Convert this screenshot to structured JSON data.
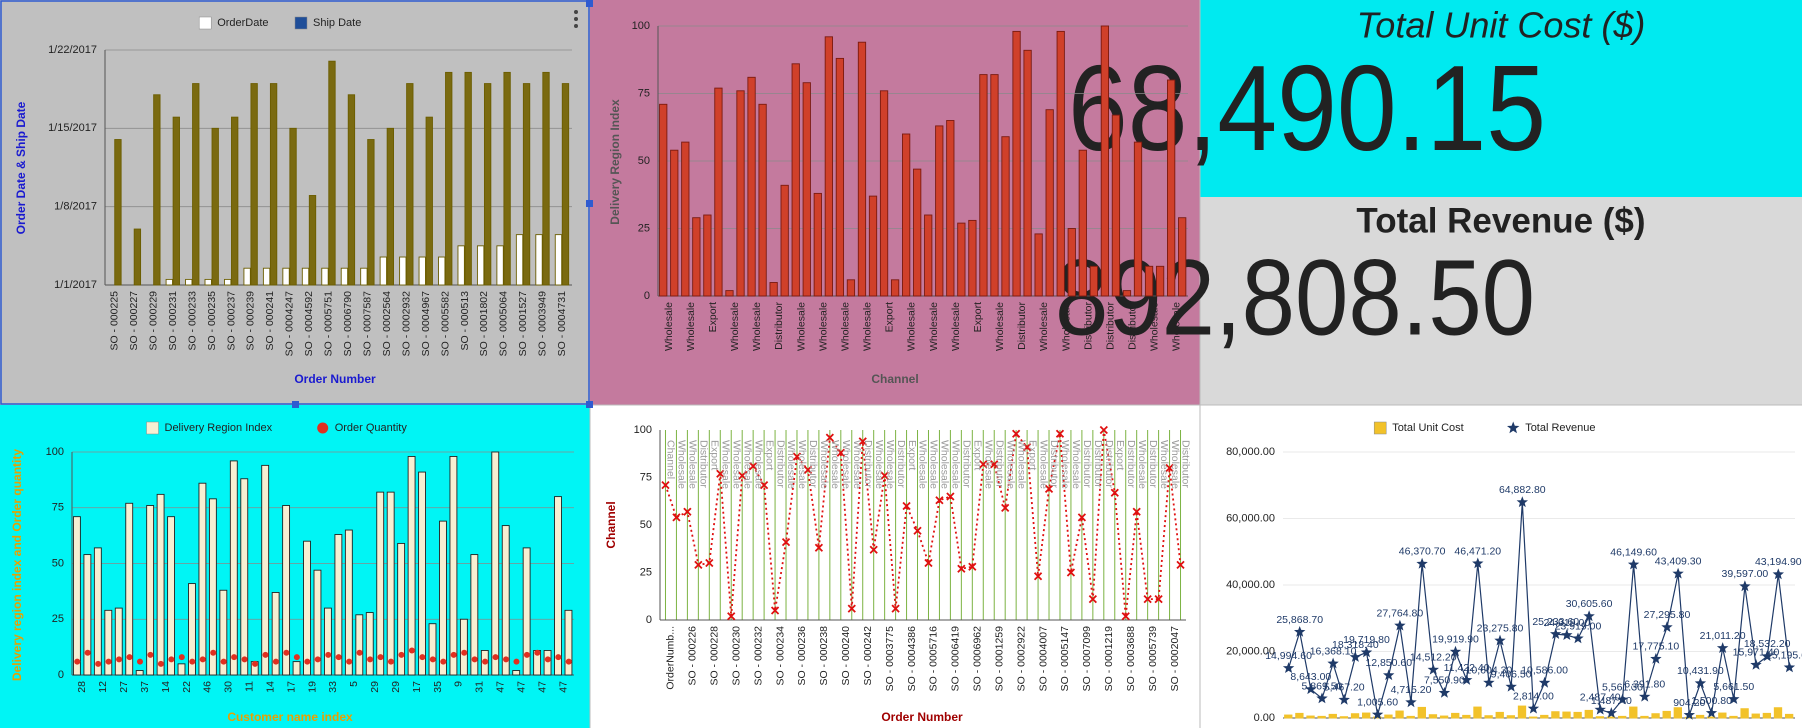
{
  "chart_data": [
    {
      "type": "bar",
      "legend": true,
      "grid": true,
      "stroke": "#6b5d00",
      "x_label": "Order Number",
      "y_label": "Order Date & Ship Date",
      "axis_label_color": "#1a1ad0",
      "categories": [
        "SO - 000225",
        "SO - 000227",
        "SO - 000229",
        "SO - 000231",
        "SO - 000233",
        "SO - 000235",
        "SO - 000237",
        "SO - 000239",
        "SO - 000241",
        "SO - 0004247",
        "SO - 0004592",
        "SO - 0005751",
        "SO - 0006790",
        "SO - 0007587",
        "SO - 0002564",
        "SO - 0002932",
        "SO - 0004967",
        "SO - 0005582",
        "SO - 000513",
        "SO - 0001802",
        "SO - 0005064",
        "SO - 0001527",
        "SO - 0003949",
        "SO - 0004731"
      ],
      "series": [
        {
          "name": "OrderDate",
          "color": "#ffffff",
          "values": [
            1,
            1,
            1,
            1.5,
            1.5,
            1.5,
            1.5,
            2.5,
            2.5,
            2.5,
            2.5,
            2.5,
            2.5,
            2.5,
            3.5,
            3.5,
            3.5,
            3.5,
            4.5,
            4.5,
            4.5,
            5.5,
            5.5,
            5.5
          ]
        },
        {
          "name": "Ship Date",
          "color": "#1f4e99",
          "bar_fill": "#7a6a10",
          "values": [
            14,
            6,
            18,
            16,
            19,
            15,
            16,
            19,
            19,
            15,
            9,
            21,
            18,
            14,
            15,
            19,
            16,
            20,
            20,
            19,
            20,
            19,
            20,
            19
          ]
        }
      ],
      "ylim": [
        1,
        22
      ],
      "yticks": [
        {
          "value": 1,
          "label": "1/1/2017"
        },
        {
          "value": 8,
          "label": "1/8/2017"
        },
        {
          "value": 15,
          "label": "1/15/2017"
        },
        {
          "value": 22,
          "label": "1/22/2017"
        }
      ]
    },
    {
      "type": "bar",
      "grid": true,
      "color": "#d0402a",
      "stroke": "#7a1a10",
      "x_label": "Channel",
      "y_label": "Delivery Region Index",
      "axis_label_color": "#555555",
      "categories": [
        "Wholesale",
        null,
        "Wholesale",
        null,
        "Export",
        null,
        "Wholesale",
        null,
        "Wholesale",
        null,
        "Distributor",
        null,
        "Wholesale",
        null,
        "Wholesale",
        null,
        "Wholesale",
        null,
        "Wholesale",
        null,
        "Export",
        null,
        "Wholesale",
        null,
        "Wholesale",
        null,
        "Wholesale",
        null,
        "Export",
        null,
        "Wholesale",
        null,
        "Distributor",
        null,
        "Wholesale",
        null,
        "Wholesale",
        null,
        "Distributor",
        null,
        "Distributor",
        null,
        "Distributor",
        null,
        "Wholesale",
        null,
        "Wholesale",
        null
      ],
      "values": [
        71,
        54,
        57,
        29,
        30,
        77,
        2,
        76,
        81,
        71,
        5,
        41,
        86,
        79,
        38,
        96,
        88,
        6,
        94,
        37,
        76,
        6,
        60,
        47,
        30,
        63,
        65,
        27,
        28,
        82,
        82,
        59,
        98,
        91,
        23,
        69,
        98,
        25,
        54,
        11,
        100,
        67,
        2,
        57,
        11,
        11,
        80,
        29
      ],
      "ylim": [
        0,
        100
      ],
      "yticks": [
        0,
        25,
        50,
        75,
        100
      ]
    },
    {
      "type": "combo",
      "legend": true,
      "grid": true,
      "x_label": "Customer name index",
      "y_label": "Delivery region index and Order quantity",
      "axis_label_color": "#e8a000",
      "categories": [
        "28",
        null,
        "12",
        null,
        "27",
        null,
        "37",
        null,
        "14",
        null,
        "22",
        null,
        "46",
        null,
        "30",
        null,
        "11",
        null,
        "14",
        null,
        "17",
        null,
        "19",
        null,
        "33",
        null,
        "5",
        null,
        "29",
        null,
        "29",
        null,
        "17",
        null,
        "35",
        null,
        "9",
        null,
        "31",
        null,
        "47",
        null,
        "47",
        null,
        "47",
        null,
        "47",
        null
      ],
      "series": [
        {
          "name": "Delivery Region Index",
          "type": "bar",
          "color": "#f7efd2",
          "stroke": "#222222",
          "values": [
            71,
            54,
            57,
            29,
            30,
            77,
            2,
            76,
            81,
            71,
            5,
            41,
            86,
            79,
            38,
            96,
            88,
            6,
            94,
            37,
            76,
            6,
            60,
            47,
            30,
            63,
            65,
            27,
            28,
            82,
            82,
            59,
            98,
            91,
            23,
            69,
            98,
            25,
            54,
            11,
            100,
            67,
            2,
            57,
            11,
            11,
            80,
            29
          ]
        },
        {
          "name": "Order Quantity",
          "type": "scatter",
          "color": "#e03020",
          "values": [
            6,
            10,
            5,
            6,
            7,
            8,
            6,
            9,
            5,
            7,
            8,
            6,
            7,
            10,
            6,
            8,
            7,
            5,
            9,
            6,
            10,
            8,
            6,
            7,
            9,
            8,
            6,
            10,
            7,
            8,
            6,
            9,
            11,
            8,
            7,
            6,
            9,
            10,
            7,
            6,
            8,
            7,
            6,
            9,
            10,
            7,
            8,
            6
          ]
        }
      ],
      "ylim": [
        0,
        100
      ],
      "yticks": [
        0,
        25,
        50,
        75,
        100
      ]
    },
    {
      "type": "line",
      "xgrid": true,
      "dashed": true,
      "color": "#e01010",
      "marker": "x",
      "x_label": "Order Number",
      "y_label": "Channel",
      "axis_label_color": "#a00000",
      "categories": [
        "OrderNumb...",
        null,
        "SO - 000226",
        null,
        "SO - 000228",
        null,
        "SO - 000230",
        null,
        "SO - 000232",
        null,
        "SO - 000234",
        null,
        "SO - 000236",
        null,
        "SO - 000238",
        null,
        "SO - 000240",
        null,
        "SO - 000242",
        null,
        "SO - 0003775",
        null,
        "SO - 0004386",
        null,
        "SO - 0005716",
        null,
        "SO - 0006419",
        null,
        "SO - 0006962",
        null,
        "SO - 0001259",
        null,
        "SO - 0002922",
        null,
        "SO - 0004007",
        null,
        "SO - 0005147",
        null,
        "SO - 0007099",
        null,
        "SO - 0001219",
        null,
        "SO - 0003688",
        null,
        "SO - 0005739",
        null,
        "SO - 0002047",
        null
      ],
      "point_labels": [
        "Channel",
        "Wholesale",
        "Wholesale",
        "Distributor",
        "Export",
        "Wholesale",
        "Wholesale",
        "Wholesale",
        "Wholesale",
        "Export",
        "Distributor",
        "Wholesale",
        "Wholesale",
        "Distributor",
        "Wholesale",
        "Wholesale",
        "Wholesale",
        "Wholesale",
        "Distributor",
        "Wholesale",
        "Wholesale",
        "Distributor",
        "Export",
        "Wholesale",
        "Wholesale",
        "Wholesale",
        "Wholesale",
        "Distributor",
        "Export",
        "Wholesale",
        "Distributor",
        "Wholesale",
        "Wholesale",
        "Export",
        "Wholesale",
        "Distributor",
        "Wholesale",
        "Wholesale",
        "Distributor",
        "Distributor",
        "Distributor",
        "Export",
        "Distributor",
        "Wholesale",
        "Distributor",
        "Wholesale",
        "Wholesale",
        "Distributor"
      ],
      "values": [
        71,
        54,
        57,
        29,
        30,
        77,
        2,
        76,
        81,
        71,
        5,
        41,
        86,
        79,
        38,
        96,
        88,
        6,
        94,
        37,
        76,
        6,
        60,
        47,
        30,
        63,
        65,
        27,
        28,
        82,
        82,
        59,
        98,
        91,
        23,
        69,
        98,
        25,
        54,
        11,
        100,
        67,
        2,
        57,
        11,
        11,
        80,
        29
      ],
      "ylim": [
        0,
        100
      ],
      "yticks": [
        0,
        25,
        50,
        75,
        100
      ]
    },
    {
      "type": "combo",
      "legend": true,
      "grid": true,
      "series": [
        {
          "name": "Total Unit Cost",
          "type": "bar",
          "color": "#f2c22a",
          "values": [
            900,
            1400,
            600,
            500,
            1100,
            400,
            1300,
            1500,
            300,
            900,
            2100,
            500,
            3200,
            1000,
            600,
            1400,
            800,
            3300,
            700,
            1700,
            700,
            3600,
            300,
            800,
            1900,
            1800,
            1700,
            2300,
            400,
            300,
            500,
            3300,
            500,
            1300,
            2000,
            3100,
            200,
            800,
            300,
            1500,
            500,
            2800,
            1200,
            1400,
            3100,
            1100
          ],
          "stroke": "#f2c22a"
        },
        {
          "name": "Total Revenue",
          "type": "line",
          "color": "#1f3a68",
          "marker": "star",
          "values": [
            14994.6,
            25868.7,
            8643,
            5869.5,
            16368.1,
            5467.2,
            18318.4,
            19719.8,
            1005.6,
            12850.6,
            27764.8,
            4715.2,
            46370.7,
            14512.2,
            7550.9,
            19919.9,
            11422.4,
            46471.2,
            10604.3,
            23275.8,
            9406.5,
            64882.8,
            2814,
            10586,
            25233.6,
            24919,
            23919,
            30605.6,
            2487.4,
            1487.4,
            5561.3,
            46149.6,
            6391.8,
            17775.1,
            27295.8,
            43409.3,
            904.2,
            10431.9,
            1500.8,
            21011.2,
            5661.5,
            39597,
            15971.4,
            18532.2,
            43194.9,
            15195.6
          ],
          "value_labels": [
            "14,994.60",
            "25,868.70",
            "8,643.00",
            "5,869.50",
            "16,368.10",
            "5,467.20",
            "18,318.40",
            "19,719.80",
            "1,005.60",
            "12,850.60",
            "27,764.80",
            "4,715.20",
            "46,370.70",
            "14,512.20",
            "7,550.90",
            "19,919.90",
            "11,422.40",
            "46,471.20",
            "10,604.30",
            "23,275.80",
            "9,406.50",
            "64,882.80",
            "2,814.00",
            "10,586.00",
            "25,233.60",
            "24,919.00",
            "23,919.00",
            "30,605.60",
            "2,487.40",
            "1,487.40",
            "5,561.30",
            "46,149.60",
            "6,391.80",
            "17,775.10",
            "27,295.80",
            "43,409.30",
            "904.20",
            "10,431.90",
            "1,500.80",
            "21,011.20",
            "5,661.50",
            "39,597.00",
            "15,971.40",
            "18,532.20",
            "43,194.90",
            "15,195.60"
          ]
        }
      ],
      "ylim": [
        0,
        80000
      ],
      "yticks": [
        {
          "value": 0,
          "label": "0.00"
        },
        {
          "value": 20000,
          "label": "20,000.00"
        },
        {
          "value": 40000,
          "label": "40,000.00"
        },
        {
          "value": 60000,
          "label": "60,000.00"
        },
        {
          "value": 80000,
          "label": "80,000.00"
        }
      ]
    }
  ],
  "kpis": [
    {
      "title": "Total Unit Cost ($)",
      "value": "68,490.15"
    },
    {
      "title": "Total Revenue ($)",
      "value": "892,808.50"
    }
  ]
}
